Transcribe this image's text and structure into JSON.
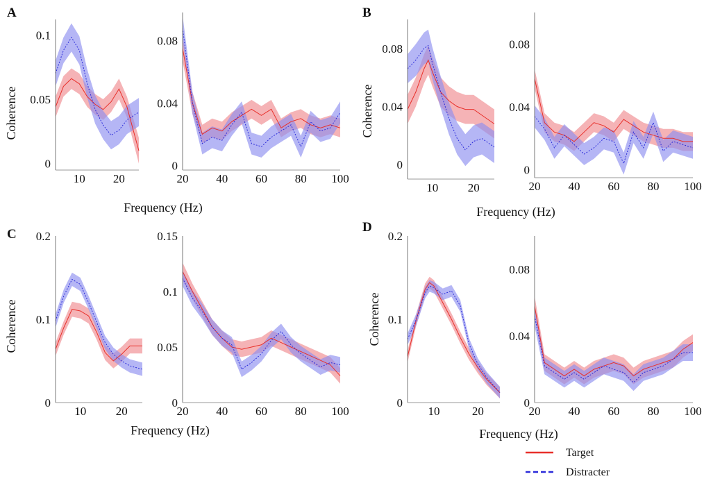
{
  "colors": {
    "target": "#e8302b",
    "distracter": "#2b2bd9",
    "target_band": "#f08a8f",
    "distracter_band": "#8d8ff0"
  },
  "legend": [
    {
      "label": "Target",
      "style": "solid",
      "color": "#e8302b"
    },
    {
      "label": "Distracter",
      "style": "dashed",
      "color": "#2b2bd9"
    }
  ],
  "panels": [
    {
      "letter": "A",
      "xlabel": "Frequency (Hz)",
      "ylabel": "Coherence"
    },
    {
      "letter": "B",
      "xlabel": "Frequency (Hz)",
      "ylabel": "Coherence"
    },
    {
      "letter": "C",
      "xlabel": "Frequency (Hz)",
      "ylabel": "Coherence"
    },
    {
      "letter": "D",
      "xlabel": "Frequency (Hz)",
      "ylabel": "Coherence"
    }
  ],
  "chart_data": [
    {
      "panel": "A",
      "subplot": "low",
      "type": "line",
      "xlim": [
        4,
        25
      ],
      "ylim": [
        -0.005,
        0.112
      ],
      "xticks": [
        10,
        20
      ],
      "yticks": [
        0,
        0.05,
        0.1
      ],
      "ytick_labels": [
        "0",
        "0.05",
        "0.1"
      ],
      "series": [
        {
          "name": "Target",
          "x": [
            4,
            6,
            8,
            10,
            12,
            14,
            16,
            18,
            20,
            22,
            25
          ],
          "y": [
            0.044,
            0.06,
            0.066,
            0.062,
            0.052,
            0.046,
            0.042,
            0.048,
            0.058,
            0.044,
            0.01
          ],
          "err": [
            0.008,
            0.008,
            0.008,
            0.008,
            0.008,
            0.008,
            0.008,
            0.008,
            0.008,
            0.008,
            0.01
          ]
        },
        {
          "name": "Distracter",
          "x": [
            4,
            6,
            8,
            10,
            12,
            14,
            16,
            18,
            20,
            22,
            25
          ],
          "y": [
            0.07,
            0.088,
            0.098,
            0.088,
            0.062,
            0.042,
            0.03,
            0.022,
            0.026,
            0.034,
            0.04
          ],
          "err": [
            0.01,
            0.01,
            0.011,
            0.011,
            0.011,
            0.011,
            0.011,
            0.011,
            0.011,
            0.011,
            0.011
          ]
        }
      ]
    },
    {
      "panel": "A",
      "subplot": "high",
      "type": "line",
      "xlim": [
        20,
        100
      ],
      "ylim": [
        -0.003,
        0.098
      ],
      "xticks": [
        20,
        40,
        60,
        80,
        100
      ],
      "yticks": [
        0,
        0.04,
        0.08
      ],
      "ytick_labels": [
        "0",
        "0.04",
        "0.08"
      ],
      "series": [
        {
          "name": "Target",
          "x": [
            20,
            25,
            30,
            35,
            40,
            45,
            50,
            55,
            60,
            65,
            70,
            75,
            80,
            85,
            90,
            95,
            100
          ],
          "y": [
            0.075,
            0.04,
            0.02,
            0.024,
            0.022,
            0.028,
            0.032,
            0.036,
            0.032,
            0.036,
            0.024,
            0.028,
            0.03,
            0.026,
            0.024,
            0.026,
            0.024
          ],
          "err": [
            0.008,
            0.007,
            0.006,
            0.006,
            0.006,
            0.006,
            0.006,
            0.006,
            0.006,
            0.006,
            0.006,
            0.006,
            0.006,
            0.006,
            0.006,
            0.006,
            0.006
          ]
        },
        {
          "name": "Distracter",
          "x": [
            20,
            25,
            30,
            35,
            40,
            45,
            50,
            55,
            60,
            65,
            70,
            75,
            80,
            85,
            90,
            95,
            100
          ],
          "y": [
            0.088,
            0.04,
            0.014,
            0.018,
            0.016,
            0.026,
            0.034,
            0.014,
            0.012,
            0.018,
            0.022,
            0.026,
            0.012,
            0.028,
            0.022,
            0.024,
            0.034
          ],
          "err": [
            0.008,
            0.007,
            0.007,
            0.007,
            0.007,
            0.007,
            0.007,
            0.007,
            0.007,
            0.007,
            0.007,
            0.007,
            0.007,
            0.007,
            0.007,
            0.007,
            0.007
          ]
        }
      ]
    },
    {
      "panel": "B",
      "subplot": "low",
      "type": "line",
      "xlim": [
        4,
        25
      ],
      "ylim": [
        -0.01,
        0.1
      ],
      "xticks": [
        10,
        20
      ],
      "yticks": [
        0,
        0.04,
        0.08
      ],
      "ytick_labels": [
        "0",
        "0.04",
        "0.08"
      ],
      "series": [
        {
          "name": "Target",
          "x": [
            4,
            6,
            8,
            9,
            10,
            12,
            14,
            16,
            18,
            20,
            22,
            25
          ],
          "y": [
            0.038,
            0.05,
            0.066,
            0.072,
            0.064,
            0.05,
            0.044,
            0.04,
            0.038,
            0.038,
            0.034,
            0.028
          ],
          "err": [
            0.01,
            0.01,
            0.01,
            0.01,
            0.01,
            0.01,
            0.01,
            0.01,
            0.01,
            0.01,
            0.01,
            0.01
          ]
        },
        {
          "name": "Distracter",
          "x": [
            4,
            6,
            8,
            9,
            10,
            12,
            14,
            16,
            18,
            20,
            22,
            25
          ],
          "y": [
            0.066,
            0.072,
            0.08,
            0.082,
            0.07,
            0.05,
            0.032,
            0.018,
            0.01,
            0.016,
            0.018,
            0.012
          ],
          "err": [
            0.01,
            0.011,
            0.011,
            0.011,
            0.011,
            0.011,
            0.011,
            0.011,
            0.011,
            0.011,
            0.011,
            0.011
          ]
        }
      ]
    },
    {
      "panel": "B",
      "subplot": "high",
      "type": "line",
      "xlim": [
        20,
        100
      ],
      "ylim": [
        -0.005,
        0.1
      ],
      "xticks": [
        20,
        40,
        60,
        80,
        100
      ],
      "yticks": [
        0,
        0.04,
        0.08
      ],
      "ytick_labels": [
        "0",
        "0.04",
        "0.08"
      ],
      "series": [
        {
          "name": "Target",
          "x": [
            20,
            25,
            30,
            35,
            40,
            45,
            50,
            55,
            60,
            65,
            70,
            75,
            80,
            85,
            90,
            95,
            100
          ],
          "y": [
            0.058,
            0.03,
            0.024,
            0.022,
            0.018,
            0.024,
            0.03,
            0.028,
            0.024,
            0.032,
            0.028,
            0.024,
            0.022,
            0.02,
            0.02,
            0.018,
            0.018
          ],
          "err": [
            0.006,
            0.006,
            0.006,
            0.006,
            0.006,
            0.006,
            0.006,
            0.006,
            0.006,
            0.006,
            0.006,
            0.006,
            0.006,
            0.006,
            0.006,
            0.006,
            0.006
          ]
        },
        {
          "name": "Distracter",
          "x": [
            20,
            25,
            30,
            35,
            40,
            45,
            50,
            55,
            60,
            65,
            70,
            75,
            80,
            85,
            90,
            95,
            100
          ],
          "y": [
            0.034,
            0.026,
            0.014,
            0.022,
            0.016,
            0.01,
            0.014,
            0.02,
            0.018,
            0.004,
            0.024,
            0.014,
            0.03,
            0.012,
            0.018,
            0.016,
            0.014
          ],
          "err": [
            0.007,
            0.007,
            0.007,
            0.007,
            0.007,
            0.007,
            0.007,
            0.007,
            0.007,
            0.007,
            0.007,
            0.007,
            0.007,
            0.007,
            0.007,
            0.007,
            0.007
          ]
        }
      ]
    },
    {
      "panel": "C",
      "subplot": "low",
      "type": "line",
      "xlim": [
        4,
        25
      ],
      "ylim": [
        0,
        0.2
      ],
      "xticks": [
        10,
        20
      ],
      "yticks": [
        0,
        0.1,
        0.2
      ],
      "ytick_labels": [
        "0",
        "0.1",
        "0.2"
      ],
      "series": [
        {
          "name": "Target",
          "x": [
            4,
            6,
            8,
            10,
            12,
            14,
            16,
            18,
            20,
            22,
            25
          ],
          "y": [
            0.064,
            0.09,
            0.112,
            0.11,
            0.104,
            0.084,
            0.06,
            0.05,
            0.058,
            0.068,
            0.068
          ],
          "err": [
            0.008,
            0.008,
            0.009,
            0.009,
            0.009,
            0.009,
            0.009,
            0.009,
            0.009,
            0.009,
            0.009
          ]
        },
        {
          "name": "Distracter",
          "x": [
            4,
            6,
            8,
            10,
            12,
            14,
            16,
            18,
            20,
            22,
            25
          ],
          "y": [
            0.098,
            0.128,
            0.148,
            0.142,
            0.12,
            0.096,
            0.072,
            0.058,
            0.05,
            0.044,
            0.04
          ],
          "err": [
            0.008,
            0.008,
            0.008,
            0.008,
            0.008,
            0.008,
            0.008,
            0.008,
            0.008,
            0.008,
            0.008
          ]
        }
      ]
    },
    {
      "panel": "C",
      "subplot": "high",
      "type": "line",
      "xlim": [
        20,
        100
      ],
      "ylim": [
        0,
        0.15
      ],
      "xticks": [
        20,
        40,
        60,
        80,
        100
      ],
      "yticks": [
        0,
        0.05,
        0.1,
        0.15
      ],
      "ytick_labels": [
        "0",
        "0.05",
        "0.1",
        "0.15"
      ],
      "series": [
        {
          "name": "Target",
          "x": [
            20,
            25,
            30,
            35,
            40,
            45,
            50,
            55,
            60,
            65,
            70,
            75,
            80,
            85,
            90,
            95,
            100
          ],
          "y": [
            0.118,
            0.1,
            0.084,
            0.068,
            0.058,
            0.05,
            0.048,
            0.05,
            0.052,
            0.058,
            0.054,
            0.05,
            0.046,
            0.042,
            0.038,
            0.034,
            0.024
          ],
          "err": [
            0.008,
            0.007,
            0.007,
            0.007,
            0.007,
            0.007,
            0.007,
            0.007,
            0.007,
            0.007,
            0.007,
            0.007,
            0.007,
            0.007,
            0.007,
            0.007,
            0.007
          ]
        },
        {
          "name": "Distracter",
          "x": [
            20,
            25,
            30,
            35,
            40,
            45,
            50,
            55,
            60,
            65,
            70,
            75,
            80,
            85,
            90,
            95,
            100
          ],
          "y": [
            0.112,
            0.094,
            0.082,
            0.068,
            0.058,
            0.052,
            0.03,
            0.036,
            0.044,
            0.056,
            0.064,
            0.052,
            0.044,
            0.038,
            0.032,
            0.036,
            0.034
          ],
          "err": [
            0.007,
            0.007,
            0.007,
            0.007,
            0.007,
            0.007,
            0.007,
            0.007,
            0.007,
            0.007,
            0.007,
            0.007,
            0.007,
            0.007,
            0.007,
            0.007,
            0.007
          ]
        }
      ]
    },
    {
      "panel": "D",
      "subplot": "low",
      "type": "line",
      "xlim": [
        4,
        25
      ],
      "ylim": [
        0,
        0.2
      ],
      "xticks": [
        10,
        20
      ],
      "yticks": [
        0,
        0.1,
        0.2
      ],
      "ytick_labels": [
        "0",
        "0.1",
        "0.2"
      ],
      "series": [
        {
          "name": "Target",
          "x": [
            4,
            6,
            8,
            9,
            10,
            12,
            14,
            16,
            18,
            20,
            22,
            25
          ],
          "y": [
            0.055,
            0.1,
            0.136,
            0.144,
            0.14,
            0.12,
            0.1,
            0.078,
            0.058,
            0.042,
            0.028,
            0.012
          ],
          "err": [
            0.007,
            0.007,
            0.007,
            0.007,
            0.007,
            0.007,
            0.007,
            0.007,
            0.007,
            0.007,
            0.007,
            0.007
          ]
        },
        {
          "name": "Distracter",
          "x": [
            4,
            6,
            8,
            9,
            10,
            12,
            14,
            16,
            18,
            20,
            22,
            25
          ],
          "y": [
            0.076,
            0.1,
            0.132,
            0.14,
            0.138,
            0.13,
            0.134,
            0.116,
            0.07,
            0.046,
            0.03,
            0.012
          ],
          "err": [
            0.007,
            0.007,
            0.007,
            0.007,
            0.007,
            0.007,
            0.007,
            0.007,
            0.007,
            0.007,
            0.007,
            0.007
          ]
        }
      ]
    },
    {
      "panel": "D",
      "subplot": "high",
      "type": "line",
      "xlim": [
        20,
        100
      ],
      "ylim": [
        0,
        0.1
      ],
      "xticks": [
        20,
        40,
        60,
        80,
        100
      ],
      "yticks": [
        0,
        0.04,
        0.08
      ],
      "ytick_labels": [
        "0",
        "0.04",
        "0.08"
      ],
      "series": [
        {
          "name": "Target",
          "x": [
            20,
            25,
            30,
            35,
            40,
            45,
            50,
            55,
            60,
            65,
            70,
            75,
            80,
            85,
            90,
            95,
            100
          ],
          "y": [
            0.058,
            0.024,
            0.02,
            0.016,
            0.02,
            0.016,
            0.02,
            0.022,
            0.024,
            0.022,
            0.016,
            0.02,
            0.022,
            0.024,
            0.026,
            0.032,
            0.036
          ],
          "err": [
            0.006,
            0.005,
            0.005,
            0.005,
            0.005,
            0.005,
            0.005,
            0.005,
            0.005,
            0.005,
            0.005,
            0.005,
            0.005,
            0.005,
            0.005,
            0.005,
            0.005
          ]
        },
        {
          "name": "Distracter",
          "x": [
            20,
            25,
            30,
            35,
            40,
            45,
            50,
            55,
            60,
            65,
            70,
            75,
            80,
            85,
            90,
            95,
            100
          ],
          "y": [
            0.052,
            0.022,
            0.018,
            0.014,
            0.018,
            0.014,
            0.018,
            0.022,
            0.02,
            0.018,
            0.012,
            0.018,
            0.02,
            0.022,
            0.026,
            0.03,
            0.03
          ],
          "err": [
            0.006,
            0.005,
            0.005,
            0.005,
            0.005,
            0.005,
            0.005,
            0.005,
            0.005,
            0.005,
            0.005,
            0.005,
            0.005,
            0.005,
            0.005,
            0.005,
            0.005
          ]
        }
      ]
    }
  ]
}
